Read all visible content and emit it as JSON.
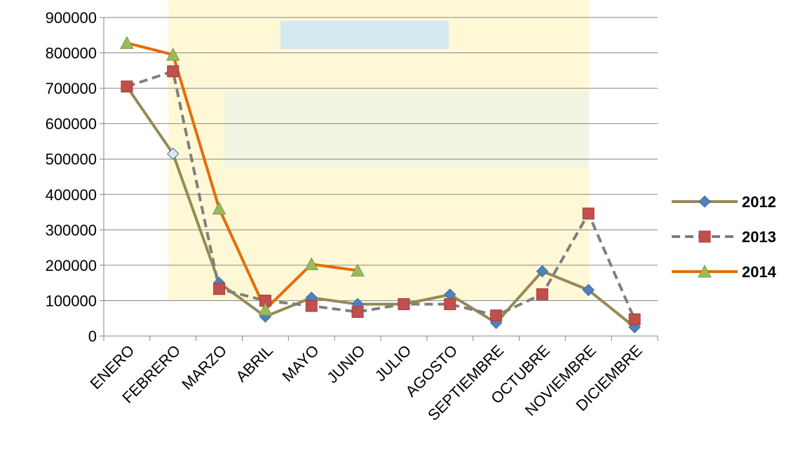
{
  "chart_data": {
    "type": "line",
    "categories": [
      "ENERO",
      "FEBRERO",
      "MARZO",
      "ABRIL",
      "MAYO",
      "JUNIO",
      "JULIO",
      "AGOSTO",
      "SEPTIEMBRE",
      "OCTUBRE",
      "NOVIEMBRE",
      "DICIEMBRE"
    ],
    "ylim": [
      0,
      900000
    ],
    "yticks": [
      "0",
      "100000",
      "200000",
      "300000",
      "400000",
      "500000",
      "600000",
      "700000",
      "800000",
      "900000"
    ],
    "grid": true,
    "legend_position": "right",
    "series": [
      {
        "name": "2012",
        "color": "#948A54",
        "marker": "diamond",
        "marker_color": "#4F81BD",
        "dash": false,
        "values": [
          705000,
          515000,
          150000,
          55000,
          108000,
          90000,
          90000,
          117000,
          37000,
          183000,
          130000,
          25000
        ]
      },
      {
        "name": "2013",
        "color": "#7F7F7F",
        "marker": "square",
        "marker_color": "#C0504D",
        "dash": true,
        "values": [
          705000,
          748000,
          133000,
          100000,
          85000,
          68000,
          90000,
          90000,
          58000,
          118000,
          346000,
          47000
        ]
      },
      {
        "name": "2014",
        "color": "#E46C0A",
        "marker": "triangle",
        "marker_color": "#9BBB59",
        "dash": false,
        "values": [
          828000,
          795000,
          360000,
          75000,
          203000,
          185000,
          null,
          null,
          null,
          null,
          null,
          null
        ]
      }
    ]
  }
}
